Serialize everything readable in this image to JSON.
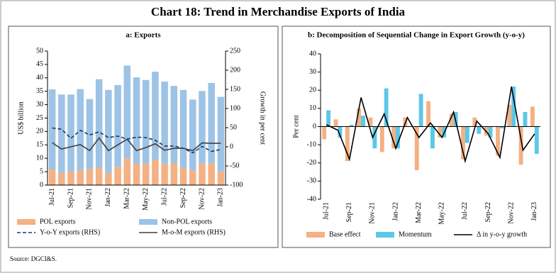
{
  "title": "Chart 18: Trend in Merchandise Exports of India",
  "source": "Source: DGCI&S.",
  "chart_data": [
    {
      "type": "bar",
      "title": "a: Exports",
      "stacked": true,
      "ylabel": "US$ billion",
      "y2label": "Growth in per cent",
      "categories": [
        "Jul-21",
        null,
        "Sep-21",
        null,
        "Nov-21",
        null,
        "Jan-22",
        null,
        "Mar-22",
        null,
        "May-22",
        null,
        "Jul-22",
        null,
        "Sep-22",
        null,
        "Nov-22",
        null,
        "Jan-23"
      ],
      "ylim": [
        0,
        50
      ],
      "yticks": [
        0,
        5,
        10,
        15,
        20,
        25,
        30,
        35,
        40,
        45,
        50
      ],
      "y2lim": [
        -100,
        250
      ],
      "y2ticks": [
        -100,
        -50,
        0,
        50,
        100,
        150,
        200,
        250
      ],
      "series": [
        {
          "name": "POL exports",
          "color": "#f4b183",
          "values": [
            5.8,
            4.5,
            5.0,
            5.5,
            5.9,
            6.5,
            4.5,
            6.8,
            10.0,
            7.8,
            8.0,
            9.5,
            8.0,
            8.2,
            6.5,
            5.5,
            8.0,
            8.0,
            5.0
          ]
        },
        {
          "name": "Non-POL exports",
          "color": "#9dc3e6",
          "values": [
            29.9,
            29.3,
            28.8,
            30.3,
            26.2,
            33.0,
            31.0,
            30.5,
            34.6,
            32.4,
            31.2,
            32.8,
            30.6,
            28.8,
            29.0,
            26.4,
            27.1,
            30.1,
            27.9
          ]
        },
        {
          "name": "Y-o-Y exports (RHS)",
          "color": "#1f3864",
          "type": "line",
          "axis": "y2",
          "dashed": true,
          "values": [
            49,
            46,
            22,
            43,
            31,
            39,
            24,
            28,
            20,
            25,
            24,
            17,
            2,
            2,
            -4,
            -16,
            1,
            -12,
            -7
          ]
        },
        {
          "name": "M-o-M exports (RHS)",
          "color": "#404040",
          "type": "line",
          "axis": "y2",
          "dashed": false,
          "values": [
            11,
            -6,
            0,
            6,
            -10,
            23,
            -10,
            5,
            20,
            -10,
            -2,
            8,
            -9,
            -4,
            -4,
            -10,
            10,
            9,
            9
          ]
        }
      ]
    },
    {
      "type": "bar",
      "title": "b: Decomposition of Sequential Change in Export Growth (y-o-y)",
      "stacked": false,
      "ylabel": "Per cent",
      "categories": [
        "Jul-21",
        null,
        "Sep-21",
        null,
        "Nov-21",
        null,
        "Jan-22",
        null,
        "Mar-22",
        null,
        "May-22",
        null,
        "Jul-22",
        null,
        "Sep-22",
        null,
        "Nov-22",
        null,
        "Jan-23"
      ],
      "ylim": [
        -40,
        40
      ],
      "yticks": [
        -40,
        -30,
        -20,
        -10,
        0,
        10,
        20,
        30,
        40
      ],
      "series": [
        {
          "name": "Base effect",
          "color": "#f4b183",
          "values": [
            -7,
            4,
            -19,
            10,
            5,
            -14,
            -12,
            5,
            -24,
            14,
            -6,
            7,
            -18,
            5,
            -5,
            -16,
            12,
            -21,
            11
          ]
        },
        {
          "name": "Momentum",
          "color": "#5bc8e8",
          "values": [
            9,
            -6,
            1,
            6,
            -12,
            21,
            -12,
            0,
            18,
            -12,
            -6,
            8,
            -9,
            -4,
            -6,
            -1,
            22,
            8,
            -15
          ]
        },
        {
          "name": "Δ in y-o-y growth",
          "color": "#000000",
          "type": "line",
          "dashed": false,
          "values": [
            1,
            -2,
            -18,
            16,
            -6,
            7,
            -12,
            5,
            -6,
            2,
            -6,
            8,
            -19,
            3,
            -4,
            -17,
            22,
            -13,
            -4
          ]
        }
      ]
    }
  ]
}
